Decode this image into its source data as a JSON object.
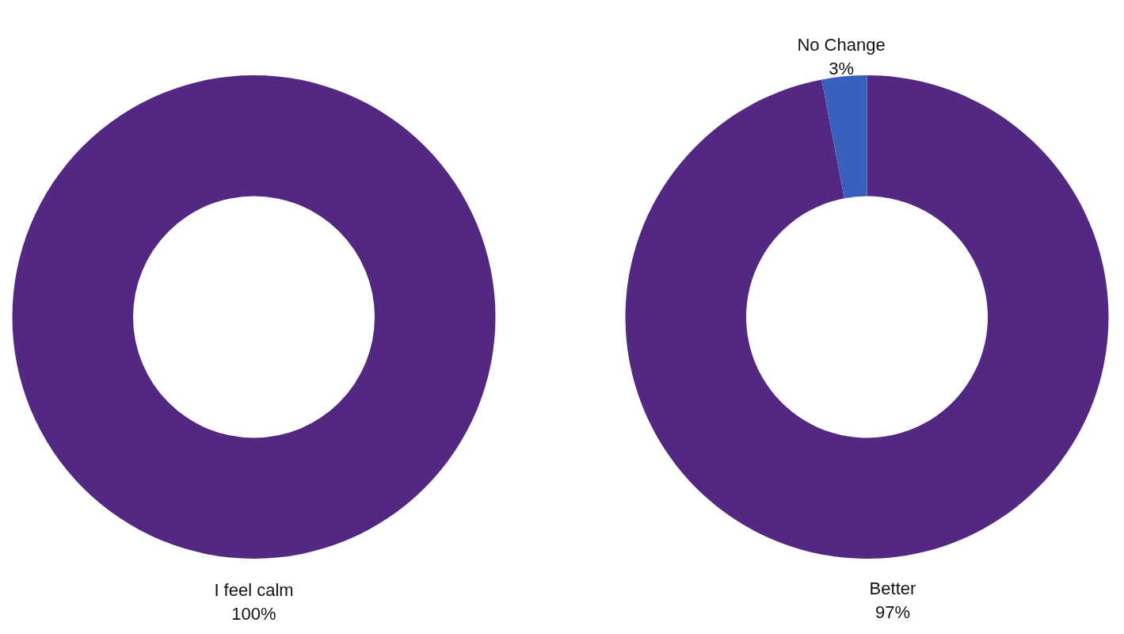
{
  "chart_data": [
    {
      "type": "donut",
      "categories": [
        "I feel calm"
      ],
      "values": [
        100
      ],
      "colors": [
        "#532882"
      ],
      "value_labels": [
        "100%"
      ]
    },
    {
      "type": "donut",
      "categories": [
        "Better",
        "No Change"
      ],
      "values": [
        97,
        3
      ],
      "colors": [
        "#532882",
        "#3a60bf"
      ],
      "value_labels": [
        "97%",
        "3%"
      ]
    }
  ]
}
